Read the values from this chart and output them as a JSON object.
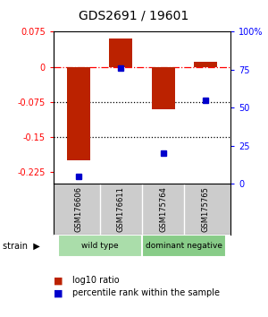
{
  "title": "GDS2691 / 19601",
  "samples": [
    "GSM176606",
    "GSM176611",
    "GSM175764",
    "GSM175765"
  ],
  "log10_ratio": [
    -0.2,
    0.06,
    -0.09,
    0.01
  ],
  "percentile_rank": [
    5,
    76,
    20,
    55
  ],
  "groups": [
    {
      "label": "wild type",
      "samples": [
        0,
        1
      ],
      "color": "#aaddaa"
    },
    {
      "label": "dominant negative",
      "samples": [
        2,
        3
      ],
      "color": "#88cc88"
    }
  ],
  "ylim_left": [
    -0.25,
    0.075
  ],
  "ylim_right": [
    0,
    100
  ],
  "yticks_left": [
    0.075,
    0,
    -0.075,
    -0.15,
    -0.225
  ],
  "yticks_right": [
    100,
    75,
    50,
    25,
    0
  ],
  "bar_color": "#bb2200",
  "dot_color": "#0000cc",
  "dotted_lines": [
    -0.075,
    -0.15
  ],
  "bar_width": 0.55,
  "fig_width": 3.0,
  "fig_height": 3.54,
  "dpi": 100
}
